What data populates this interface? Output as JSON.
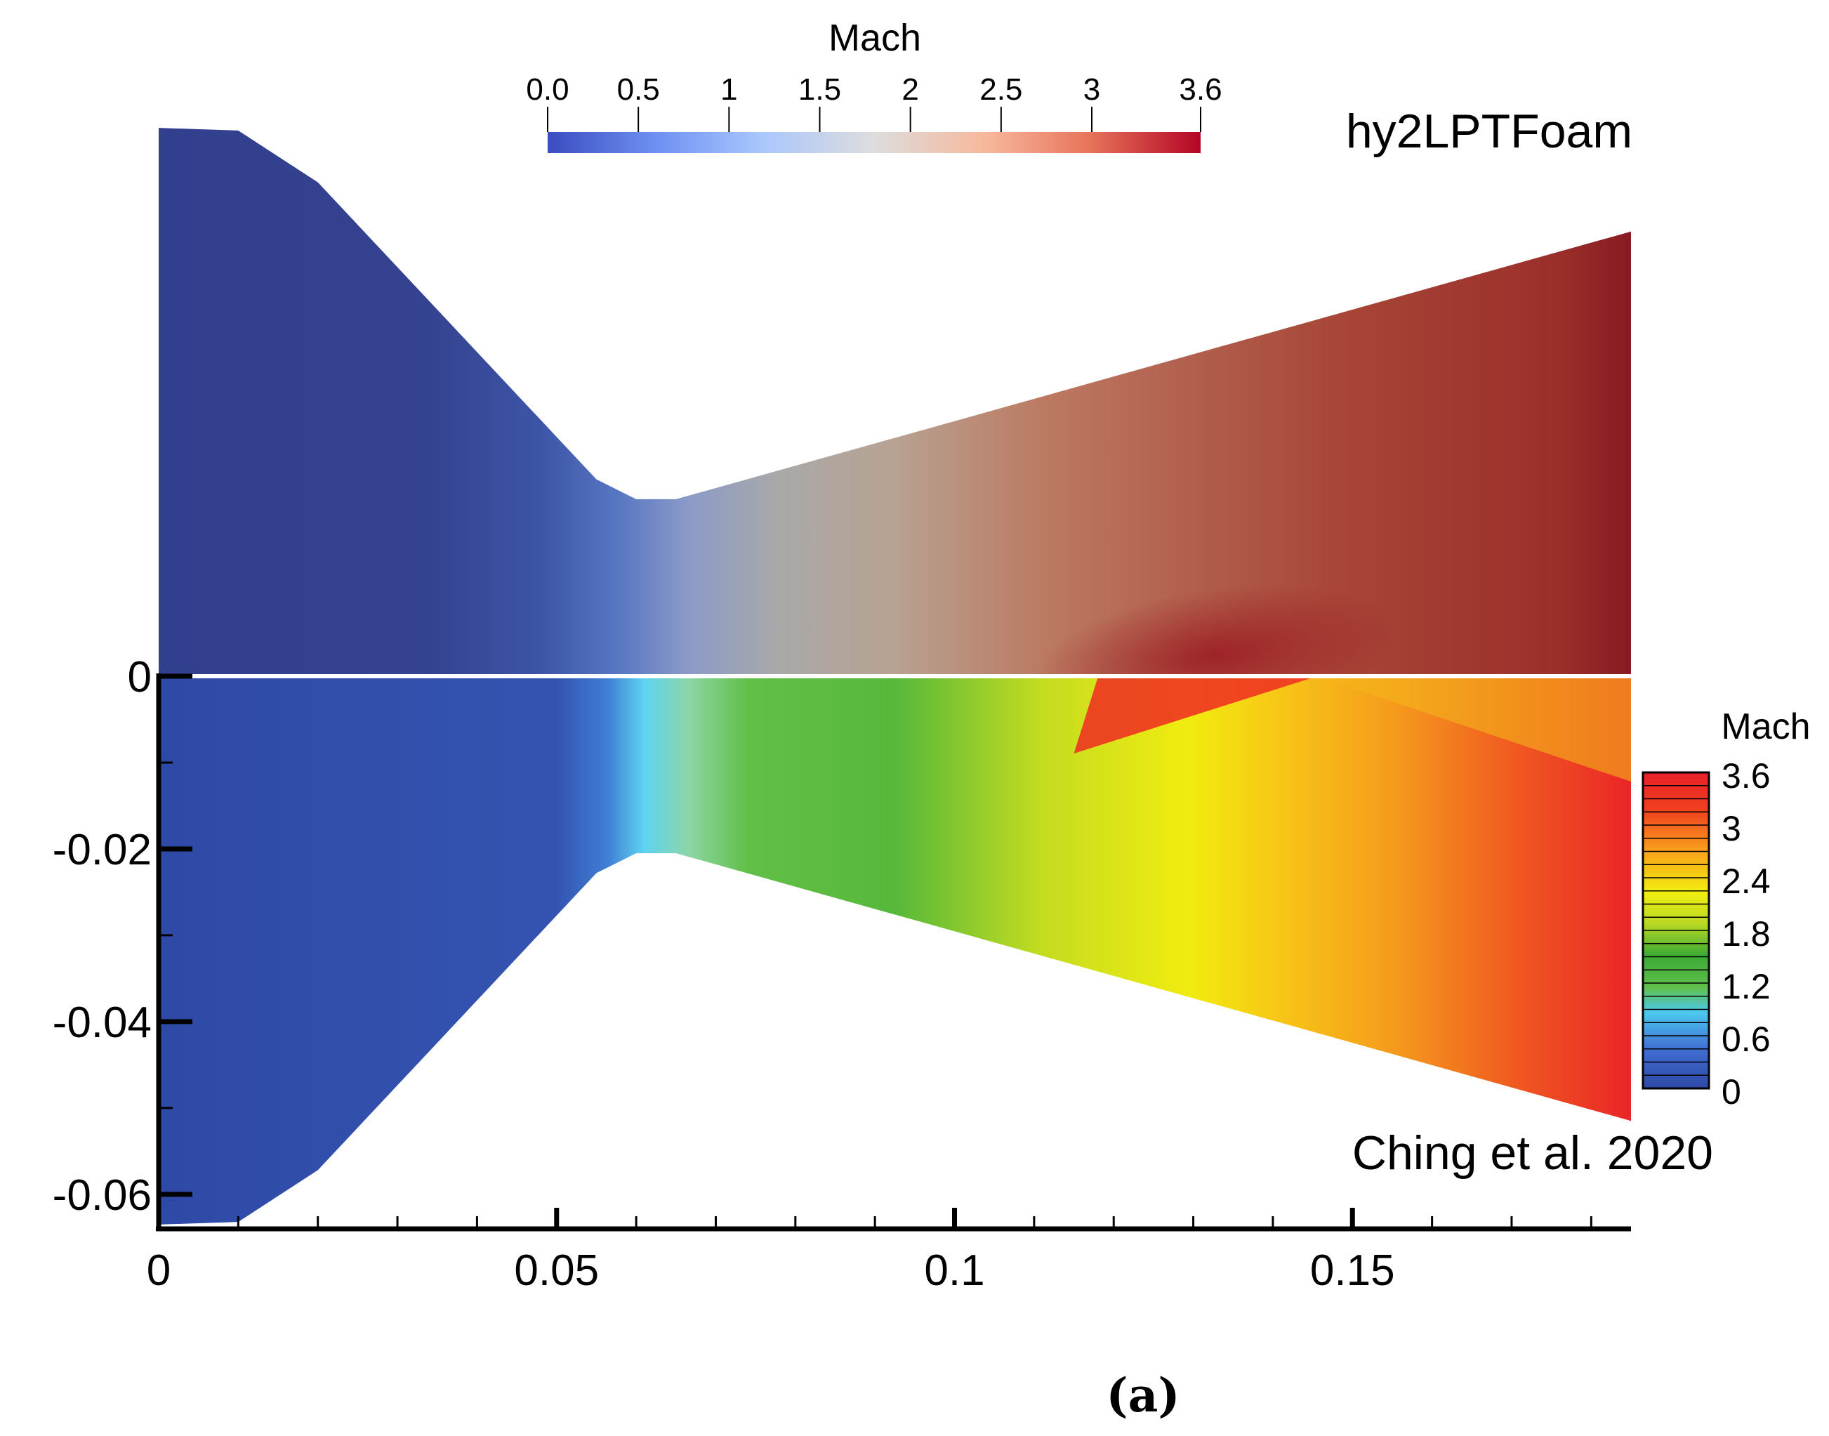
{
  "chart_data": {
    "type": "heatmap",
    "panel_label": "(a)",
    "quantity": "Mach",
    "x": {
      "range": [
        0,
        0.185
      ],
      "ticks": [
        0,
        0.05,
        0.1,
        0.15
      ],
      "tick_labels": [
        "0",
        "0.05",
        "0.1",
        "0.15"
      ],
      "minor_step": 0.01
    },
    "y": {
      "range": [
        -0.064,
        0.0
      ],
      "ticks": [
        0,
        -0.02,
        -0.04,
        -0.06
      ],
      "tick_labels": [
        "0",
        "-0.02",
        "-0.04",
        "-0.06"
      ],
      "minor_step": 0.01
    },
    "nozzle_contour": {
      "description": "axisymmetric converging-diverging nozzle half-profile (radius vs axial position)",
      "x": [
        0,
        0.01,
        0.02,
        0.055,
        0.06,
        0.065,
        0.185
      ],
      "r": [
        0.0635,
        0.0632,
        0.0572,
        0.0228,
        0.0205,
        0.0205,
        0.0515
      ]
    },
    "panels": [
      {
        "name": "hy2LPTFoam",
        "position": "top (mirrored)",
        "colorbar": {
          "title": "Mach",
          "orientation": "horizontal",
          "range": [
            0.0,
            3.6
          ],
          "ticks": [
            0.0,
            0.5,
            1,
            1.5,
            2,
            2.5,
            3,
            3.6
          ],
          "tick_labels": [
            "0.0",
            "0.5",
            "1",
            "1.5",
            "2",
            "2.5",
            "3",
            "3.6"
          ],
          "colormap": [
            "#3b4cc0",
            "#6f92f3",
            "#aac7fd",
            "#dddddd",
            "#f7b89c",
            "#e7745b",
            "#b40426"
          ]
        }
      },
      {
        "name": "Ching et al. 2020",
        "position": "bottom",
        "colorbar": {
          "title": "Mach",
          "orientation": "vertical",
          "range": [
            0,
            3.6
          ],
          "levels": 24,
          "tick_labels": [
            "3.6",
            "3",
            "2.4",
            "1.8",
            "1.2",
            "0.6",
            "0"
          ],
          "colormap": [
            "#2e49a5",
            "#3f6cd1",
            "#4cc8f0",
            "#60c04a",
            "#3aaa35",
            "#d8e61e",
            "#f2ee10",
            "#f9a21c",
            "#f0401e",
            "#e8202a"
          ]
        }
      }
    ]
  }
}
